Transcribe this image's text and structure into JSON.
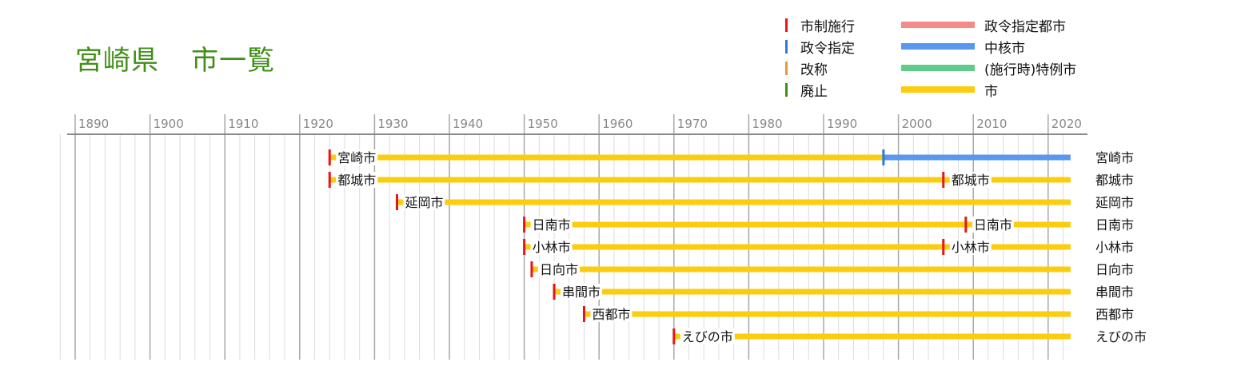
{
  "title": {
    "main": "宮崎県",
    "sub": "市一覧"
  },
  "legend": {
    "events": [
      {
        "label": "市制施行",
        "color": "#e8141c"
      },
      {
        "label": "政令指定",
        "color": "#2d7bd8"
      },
      {
        "label": "改称",
        "color": "#f0953a"
      },
      {
        "label": "廃止",
        "color": "#3f8f17"
      }
    ],
    "statuses": [
      {
        "label": "政令指定都市",
        "color": "#f48a8a"
      },
      {
        "label": "中核市",
        "color": "#5a97ef"
      },
      {
        "label": "(施行時)特例市",
        "color": "#5fcc8a"
      },
      {
        "label": "市",
        "color": "#fbcd0e"
      }
    ]
  },
  "chart_data": {
    "type": "timeline",
    "title": "宮崎県　市一覧",
    "x_axis": {
      "range": [
        1887,
        2023
      ],
      "ticks": [
        1890,
        1900,
        1910,
        1920,
        1930,
        1940,
        1950,
        1960,
        1970,
        1980,
        1990,
        2000,
        2010,
        2020
      ],
      "minor_step": 2
    },
    "cities": [
      {
        "name": "宮崎市",
        "end_label": "宮崎市",
        "segments": [
          {
            "start": 1924,
            "end": 1998,
            "status": "市"
          },
          {
            "start": 1998,
            "end": 2023,
            "status": "中核市"
          }
        ],
        "events": [
          {
            "year": 1924,
            "type": "市制施行"
          },
          {
            "year": 1998,
            "type": "政令指定"
          }
        ],
        "labels": [
          {
            "year": 1924,
            "text": "宮崎市"
          }
        ]
      },
      {
        "name": "都城市",
        "end_label": "都城市",
        "segments": [
          {
            "start": 1924,
            "end": 2023,
            "status": "市"
          }
        ],
        "events": [
          {
            "year": 1924,
            "type": "市制施行"
          },
          {
            "year": 2006,
            "type": "市制施行"
          }
        ],
        "labels": [
          {
            "year": 1924,
            "text": "都城市"
          },
          {
            "year": 2006,
            "text": "都城市"
          }
        ]
      },
      {
        "name": "延岡市",
        "end_label": "延岡市",
        "segments": [
          {
            "start": 1933,
            "end": 2023,
            "status": "市"
          }
        ],
        "events": [
          {
            "year": 1933,
            "type": "市制施行"
          }
        ],
        "labels": [
          {
            "year": 1933,
            "text": "延岡市"
          }
        ]
      },
      {
        "name": "日南市",
        "end_label": "日南市",
        "segments": [
          {
            "start": 1950,
            "end": 2023,
            "status": "市"
          }
        ],
        "events": [
          {
            "year": 1950,
            "type": "市制施行"
          },
          {
            "year": 2009,
            "type": "市制施行"
          }
        ],
        "labels": [
          {
            "year": 1950,
            "text": "日南市"
          },
          {
            "year": 2009,
            "text": "日南市"
          }
        ]
      },
      {
        "name": "小林市",
        "end_label": "小林市",
        "segments": [
          {
            "start": 1950,
            "end": 2023,
            "status": "市"
          }
        ],
        "events": [
          {
            "year": 1950,
            "type": "市制施行"
          },
          {
            "year": 2006,
            "type": "市制施行"
          }
        ],
        "labels": [
          {
            "year": 1950,
            "text": "小林市"
          },
          {
            "year": 2006,
            "text": "小林市"
          }
        ]
      },
      {
        "name": "日向市",
        "end_label": "日向市",
        "segments": [
          {
            "start": 1951,
            "end": 2023,
            "status": "市"
          }
        ],
        "events": [
          {
            "year": 1951,
            "type": "市制施行"
          }
        ],
        "labels": [
          {
            "year": 1951,
            "text": "日向市"
          }
        ]
      },
      {
        "name": "串間市",
        "end_label": "串間市",
        "segments": [
          {
            "start": 1954,
            "end": 2023,
            "status": "市"
          }
        ],
        "events": [
          {
            "year": 1954,
            "type": "市制施行"
          }
        ],
        "labels": [
          {
            "year": 1954,
            "text": "串間市"
          }
        ]
      },
      {
        "name": "西都市",
        "end_label": "西都市",
        "segments": [
          {
            "start": 1958,
            "end": 2023,
            "status": "市"
          }
        ],
        "events": [
          {
            "year": 1958,
            "type": "市制施行"
          }
        ],
        "labels": [
          {
            "year": 1958,
            "text": "西都市"
          }
        ]
      },
      {
        "name": "えびの市",
        "end_label": "えびの市",
        "segments": [
          {
            "start": 1970,
            "end": 2023,
            "status": "市"
          }
        ],
        "events": [
          {
            "year": 1970,
            "type": "市制施行"
          }
        ],
        "labels": [
          {
            "year": 1970,
            "text": "えびの市"
          }
        ]
      }
    ]
  }
}
